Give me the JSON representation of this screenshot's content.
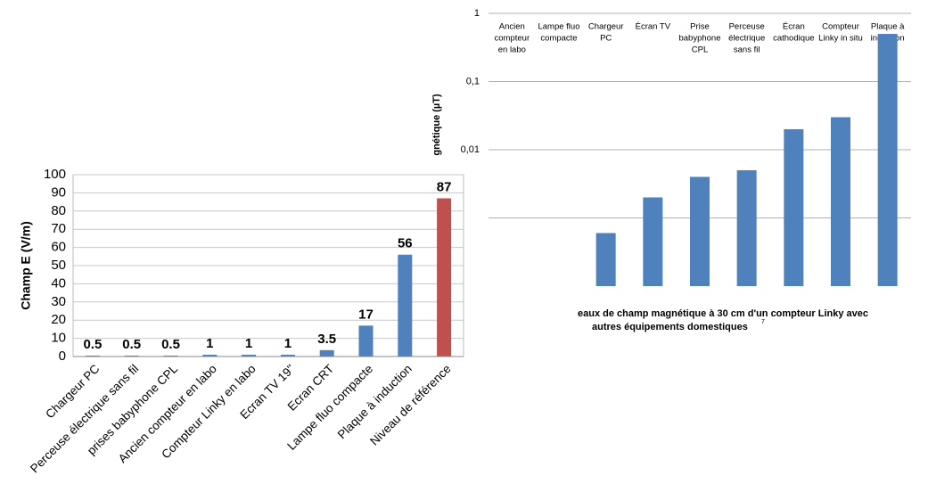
{
  "chart_data": [
    {
      "type": "bar",
      "y_label": "Champ E (V/m)",
      "categories": [
        "Chargeur PC",
        "Perceuse électrique sans fil",
        "prises babyphone CPL",
        "Ancien compteur en labo",
        "Compteur Linky en labo",
        "Ecran TV 19''",
        "Ecran CRT",
        "Lampe fluo compacte",
        "Plaque à induction",
        "Niveau de référence"
      ],
      "values": [
        0.5,
        0.5,
        0.5,
        1,
        1,
        1,
        3.5,
        17,
        56,
        87
      ],
      "colors": [
        "#4f81bd",
        "#4f81bd",
        "#4f81bd",
        "#4f81bd",
        "#4f81bd",
        "#4f81bd",
        "#4f81bd",
        "#4f81bd",
        "#4f81bd",
        "#c0504d"
      ],
      "ylim": [
        0,
        100
      ],
      "yticks": [
        0,
        10,
        20,
        30,
        40,
        50,
        60,
        70,
        80,
        90,
        100
      ],
      "grid": true
    },
    {
      "type": "bar",
      "log_scale": true,
      "y_label": "gnétique (µT)",
      "categories": [
        [
          "Ancien",
          "compteur",
          "en labo"
        ],
        [
          "Lampe fluo",
          "compacte"
        ],
        [
          "Chargeur",
          "PC"
        ],
        [
          "Écran TV"
        ],
        [
          "Prise",
          "babyphone",
          "CPL"
        ],
        [
          "Perceuse",
          "électrique",
          "sans fil"
        ],
        [
          "Écran",
          "cathodique"
        ],
        [
          "Compteur",
          "Linky in situ"
        ],
        [
          "Plaque à",
          "induction"
        ]
      ],
      "values": [
        null,
        null,
        0.0006,
        0.002,
        0.004,
        0.005,
        0.02,
        0.03,
        0.5
      ],
      "color": "#4f81bd",
      "ylim": [
        0.0001,
        1
      ],
      "yticks": [
        {
          "value": 1,
          "label": "1"
        },
        {
          "value": 0.1,
          "label": "0,1"
        },
        {
          "value": 0.01,
          "label": "0,01"
        }
      ],
      "unlabeled_gridlines": [
        0.001
      ],
      "grid": true,
      "caption": [
        "eaux de champ magnétique à 30 cm d'un compteur Linky avec",
        "autres équipements domestiques"
      ],
      "footnote": "7"
    }
  ]
}
